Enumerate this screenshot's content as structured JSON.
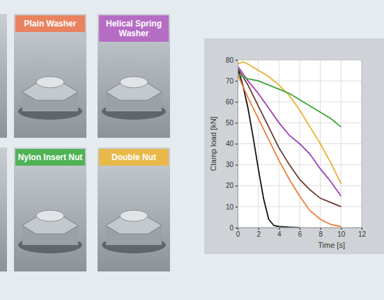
{
  "chart_data": {
    "type": "line",
    "y_label": "Clamp load [kN]",
    "x_label": "Time [s]",
    "xlim": [
      0,
      12
    ],
    "xticks": [
      0,
      2,
      4,
      6,
      8,
      10,
      12
    ],
    "ylim": [
      0,
      80
    ],
    "yticks": [
      0,
      10,
      20,
      30,
      40,
      50,
      60,
      70,
      80
    ],
    "grid": true,
    "series": [
      {
        "color": "#111111",
        "x": [
          0,
          0.5,
          1,
          1.5,
          2,
          2.5,
          3,
          3.5,
          4,
          5,
          6
        ],
        "values": [
          76,
          68,
          57,
          43,
          28,
          14,
          4,
          1,
          0.5,
          0.2,
          0
        ]
      },
      {
        "color": "#f07a3a",
        "x": [
          0,
          1,
          2,
          3,
          4,
          5,
          6,
          7,
          8,
          9,
          10
        ],
        "values": [
          73,
          62,
          52,
          42,
          32,
          23,
          15,
          8,
          4,
          1.5,
          0.5
        ]
      },
      {
        "color": "#6b3a2e",
        "x": [
          0,
          1,
          2,
          3,
          4,
          5,
          6,
          7,
          8,
          9,
          10
        ],
        "values": [
          76,
          68,
          58,
          48,
          38,
          30,
          23,
          18,
          14,
          12,
          10
        ]
      },
      {
        "color": "#9b3fb6",
        "x": [
          0,
          1,
          2,
          3,
          4,
          5,
          6,
          7,
          8,
          9,
          10
        ],
        "values": [
          77,
          70,
          64,
          57,
          50,
          44,
          40,
          35,
          28,
          22,
          15
        ]
      },
      {
        "color": "#e8b030",
        "x": [
          0,
          0.5,
          1,
          2,
          3,
          4,
          5,
          6,
          7,
          8,
          9,
          10
        ],
        "values": [
          78,
          79,
          78,
          75,
          72,
          68,
          63,
          56,
          48,
          40,
          31,
          21
        ]
      },
      {
        "color": "#3aa53a",
        "x": [
          0,
          1,
          2,
          3,
          4,
          5,
          6,
          7,
          8,
          9,
          10
        ],
        "values": [
          73,
          71,
          70,
          68,
          66,
          64,
          61,
          58,
          55,
          52,
          48
        ]
      }
    ]
  },
  "panels": [
    {
      "label": "Plain Washer",
      "color": "#e9825f"
    },
    {
      "label": "Helical Spring Washer",
      "color": "#b56dc4"
    },
    {
      "label": "Nylon Insert Nut",
      "color": "#4fb356"
    },
    {
      "label": "Double Nut",
      "color": "#e8b84a"
    }
  ]
}
